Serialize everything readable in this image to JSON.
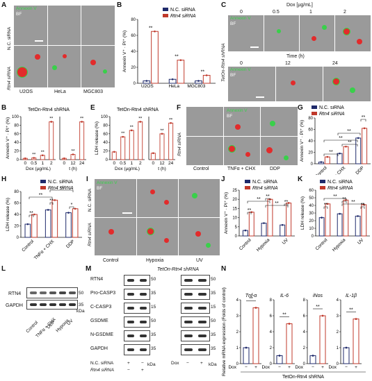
{
  "panels": {
    "A": "A",
    "B": "B",
    "C": "C",
    "D": "B",
    "E": "E",
    "F": "F",
    "G": "G",
    "H": "H",
    "I": "I",
    "J": "J",
    "K": "K",
    "L": "L",
    "M": "M",
    "N": "N"
  },
  "colors": {
    "control": "#1f2a6b",
    "knock": "#c0392b",
    "annexin": "#39d04a",
    "pi": "#e22b2b"
  },
  "common": {
    "legend_nc": "N.C. siRNA",
    "legend_rtn4": "Rtn4 siRNA",
    "sig": "**",
    "sig1": "*",
    "annexin": "Annexin V",
    "bf": "BF",
    "annexin_pi_axis": "Annexin V⁺ · PI⁺ (%)",
    "ldh_axis": "LDH release (%)",
    "tet_on": "TetOn-Rtn4 shRNA",
    "dox_axis": "Dox (µg/mL)",
    "t_axis": "t (h)",
    "kda": "kDa"
  },
  "panelA": {
    "row1": "N.C. siRNA",
    "row2": "Rtn4 siRNA",
    "cols": [
      "U2OS",
      "HeLa",
      "MGC803"
    ]
  },
  "panelC": {
    "title": "Dox [µg/mL]",
    "doses": [
      "0",
      "0.5",
      "1",
      "2"
    ],
    "time_title": "Time (h)",
    "times": [
      "0",
      "12",
      "24"
    ],
    "side": "TetOn-Rtn4 shRNA"
  },
  "panelF": {
    "row2": "Rtn4 siRNA",
    "cols": [
      "Control",
      "TNFα + CHX",
      "DDP"
    ]
  },
  "panelI": {
    "row1": "N.C. siRNA",
    "row2": "Rtn4 siRNA",
    "cols": [
      "Control",
      "Hypoxia",
      "UV"
    ]
  },
  "panelL": {
    "rows": [
      "RTN4",
      "GAPDH"
    ],
    "markers": [
      "50",
      "35"
    ],
    "lanes": [
      "Control",
      "TNFα + CHX",
      "DDP",
      "Hypoxia",
      "UV"
    ]
  },
  "panelM": {
    "rows": [
      "RTN4",
      "Pro-CASP3",
      "C-CASP3",
      "GSDME",
      "N-GSDME",
      "GAPDH"
    ],
    "markers": [
      "50",
      "35",
      "15",
      "50",
      "35",
      "35"
    ],
    "nc_label": "N.C. siRNA",
    "rtn4_label": "Rtn4 siRNA",
    "nc": [
      "+",
      "−"
    ],
    "rtn4": [
      "−",
      "+"
    ],
    "title": "TetOn-Rtn4 shRNA",
    "dox_label": "Dox",
    "dox": [
      "−",
      "+"
    ]
  },
  "panelN": {
    "ylabel": "Relative mRNA expression (Folds of control)",
    "genes": [
      "Tnf-α",
      "IL-6",
      "iNos",
      "IL-1β"
    ],
    "dox_label": "Dox",
    "dox": [
      "−",
      "+"
    ],
    "footer": "TetOn-Rtn4 shRNA"
  },
  "chart_data": [
    {
      "panel": "B",
      "type": "bar",
      "categories": [
        "U2OS",
        "HeLa",
        "MGC803"
      ],
      "ylabel": "Annexin V⁺ · PI⁺ (%)",
      "ylim": [
        0,
        80
      ],
      "yticks": [
        0,
        20,
        40,
        60,
        80
      ],
      "series": [
        {
          "name": "N.C. siRNA",
          "values": [
            3,
            5,
            3
          ]
        },
        {
          "name": "Rtn4 siRNA",
          "values": [
            65,
            29,
            10
          ]
        }
      ]
    },
    {
      "panel": "D",
      "type": "line",
      "xlabel": "Dox (µg/mL)",
      "x": [
        "0",
        "0.5",
        "1",
        "2"
      ],
      "ylabel": "Annexin V⁺ · PI⁺ (%)",
      "ylim": [
        0,
        100
      ],
      "yticks": [
        0,
        20,
        40,
        60,
        80,
        100
      ],
      "series": [
        {
          "values": [
            3,
            4,
            10,
            88
          ]
        }
      ]
    },
    {
      "panel": "D2",
      "type": "line",
      "xlabel": "t (h)",
      "x": [
        "0",
        "12",
        "24"
      ],
      "ylim": [
        0,
        100
      ],
      "series": [
        {
          "values": [
            3,
            12,
            88
          ]
        }
      ]
    },
    {
      "panel": "E",
      "type": "line",
      "xlabel": "Dox (µg/mL)",
      "x": [
        "0",
        "0.5",
        "1",
        "2"
      ],
      "ylabel": "LDH release (%)",
      "ylim": [
        0,
        100
      ],
      "yticks": [
        0,
        20,
        40,
        60,
        80,
        100
      ],
      "series": [
        {
          "values": [
            18,
            53,
            68,
            88
          ]
        }
      ]
    },
    {
      "panel": "E2",
      "type": "line",
      "xlabel": "t (h)",
      "x": [
        "0",
        "12",
        "24"
      ],
      "ylim": [
        0,
        100
      ],
      "series": [
        {
          "values": [
            15,
            60,
            85
          ]
        }
      ]
    },
    {
      "panel": "G",
      "type": "bar",
      "categories": [
        "Control",
        "TNFα + CHX",
        "DDP"
      ],
      "ylabel": "Annexin V⁺ · PI⁺ (%)",
      "ylim": [
        0,
        80
      ],
      "yticks": [
        0,
        20,
        40,
        60,
        80
      ],
      "series": [
        {
          "name": "N.C. siRNA",
          "values": [
            3,
            18,
            45
          ]
        },
        {
          "name": "Rtn4 siRNA",
          "values": [
            12,
            30,
            62
          ]
        }
      ]
    },
    {
      "panel": "H",
      "type": "bar",
      "categories": [
        "Control",
        "TNFα + CHX",
        "DDP"
      ],
      "ylabel": "LDH release (%)",
      "ylim": [
        0,
        80
      ],
      "yticks": [
        0,
        20,
        40,
        60,
        80
      ],
      "series": [
        {
          "name": "N.C. siRNA",
          "values": [
            23,
            48,
            43
          ]
        },
        {
          "name": "Rtn4 siRNA",
          "values": [
            40,
            65,
            50
          ]
        }
      ]
    },
    {
      "panel": "J",
      "type": "bar",
      "categories": [
        "Control",
        "Hypoxia",
        "UV"
      ],
      "ylabel": "Annexin V⁺ · PI⁺ (%)",
      "ylim": [
        0,
        25
      ],
      "yticks": [
        0,
        5,
        10,
        15,
        20,
        25
      ],
      "series": [
        {
          "name": "N.C. siRNA",
          "values": [
            3,
            7,
            6
          ]
        },
        {
          "name": "Rtn4 siRNA",
          "values": [
            13,
            20,
            18
          ]
        }
      ]
    },
    {
      "panel": "K",
      "type": "bar",
      "categories": [
        "Control",
        "Hypoxia",
        "UV"
      ],
      "ylabel": "LDH release (%)",
      "ylim": [
        0,
        60
      ],
      "yticks": [
        0,
        10,
        20,
        30,
        40,
        50,
        60
      ],
      "series": [
        {
          "name": "N.C. siRNA",
          "values": [
            24,
            29,
            26
          ]
        },
        {
          "name": "Rtn4 siRNA",
          "values": [
            42,
            47,
            41
          ]
        }
      ]
    },
    {
      "panel": "N1",
      "type": "bar",
      "title": "Tnf-α",
      "categories": [
        "−",
        "+"
      ],
      "ylim": [
        0,
        4
      ],
      "yticks": [
        0,
        1,
        2,
        3,
        4
      ],
      "values": [
        1,
        3.5
      ]
    },
    {
      "panel": "N2",
      "type": "bar",
      "title": "IL-6",
      "categories": [
        "−",
        "+"
      ],
      "ylim": [
        0,
        8
      ],
      "yticks": [
        0,
        2,
        4,
        6,
        8
      ],
      "values": [
        1,
        5
      ]
    },
    {
      "panel": "N3",
      "type": "bar",
      "title": "iNos",
      "categories": [
        "−",
        "+"
      ],
      "ylim": [
        0,
        8
      ],
      "yticks": [
        0,
        2,
        4,
        6,
        8
      ],
      "values": [
        1,
        6
      ]
    },
    {
      "panel": "N4",
      "type": "bar",
      "title": "IL-1β",
      "categories": [
        "−",
        "+"
      ],
      "ylim": [
        0,
        4
      ],
      "yticks": [
        0,
        1,
        2,
        3,
        4
      ],
      "values": [
        1,
        2.8
      ]
    }
  ]
}
